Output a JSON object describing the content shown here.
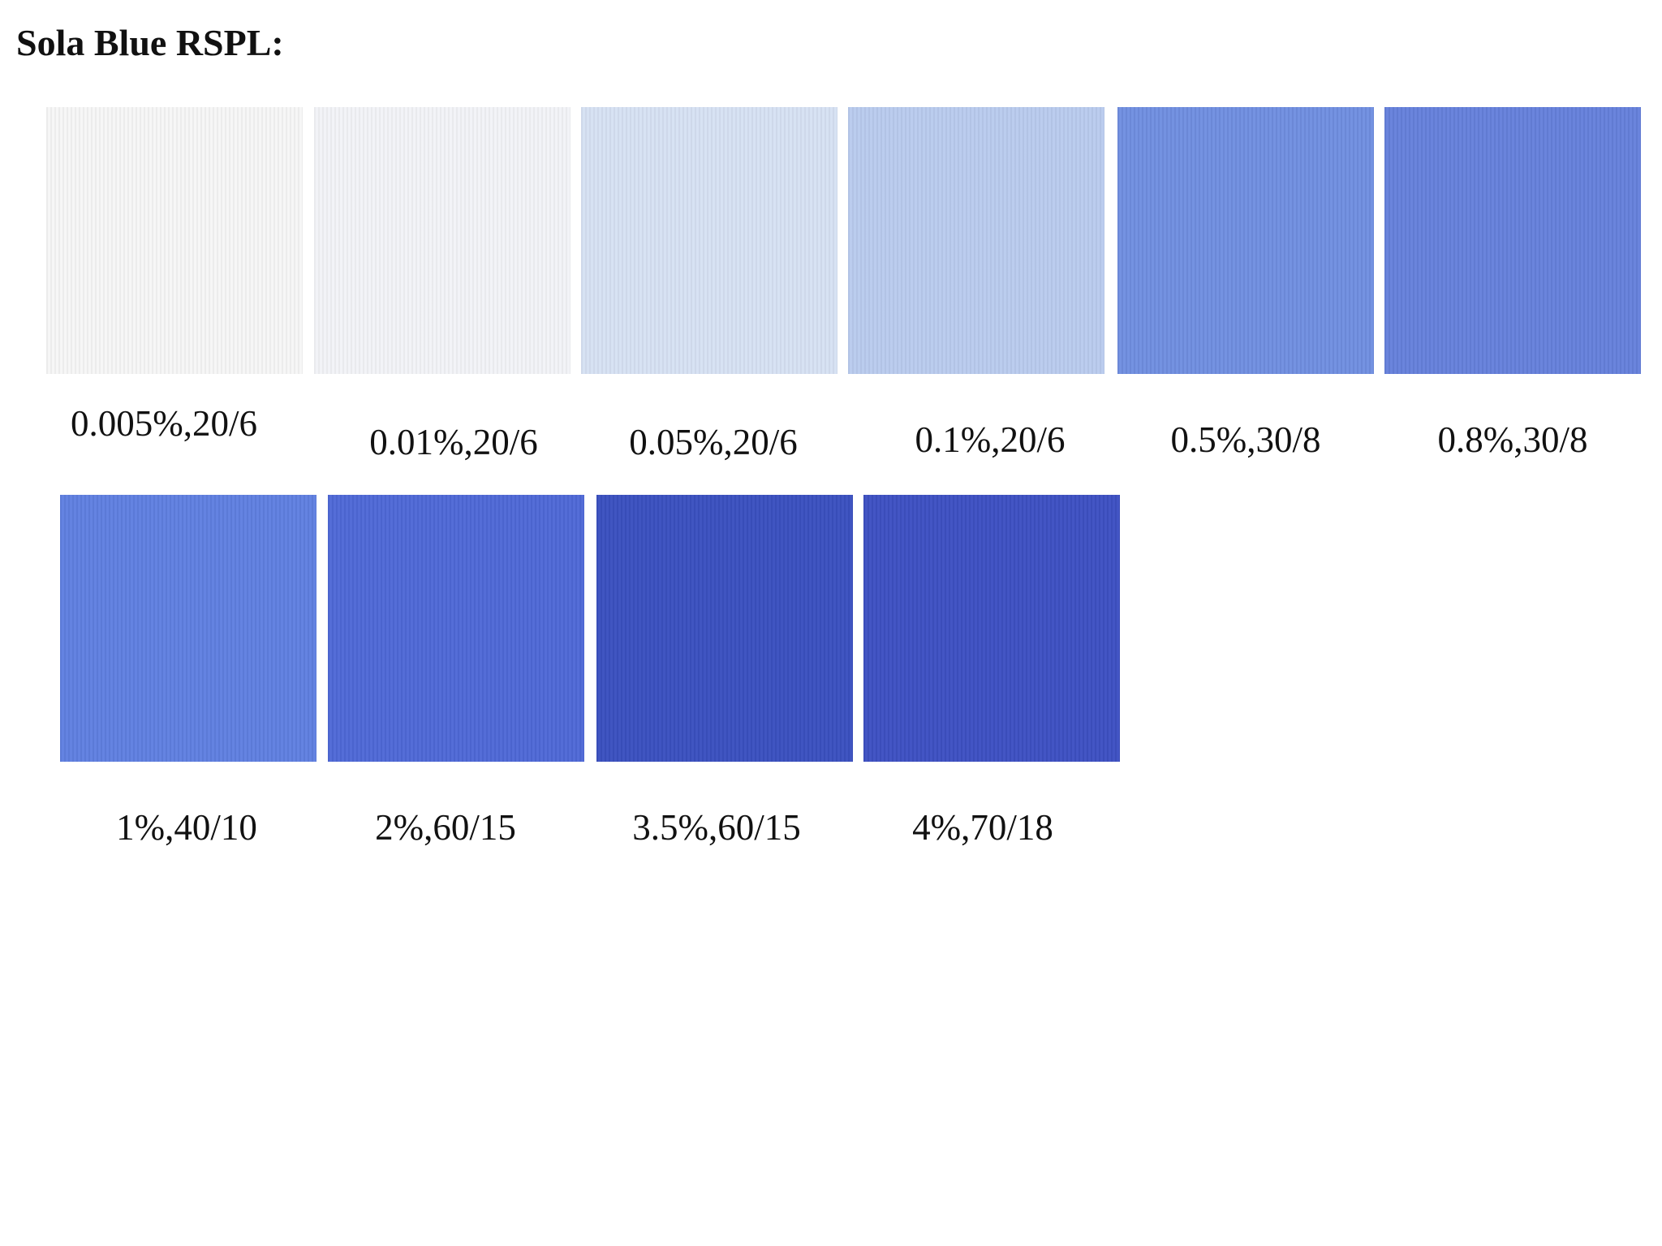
{
  "title": "Sola Blue RSPL:",
  "swatches": [
    {
      "label": "0.005%,20/6",
      "color": "#f6f6f6"
    },
    {
      "label": "0.01%,20/6",
      "color": "#f2f3f7"
    },
    {
      "label": "0.05%,20/6",
      "color": "#d6e1f3"
    },
    {
      "label": "0.1%,20/6",
      "color": "#b9cbee"
    },
    {
      "label": "0.5%,30/8",
      "color": "#6f8ee0"
    },
    {
      "label": "0.8%,30/8",
      "color": "#6580db"
    },
    {
      "label": "1%,40/10",
      "color": "#5f7fe0"
    },
    {
      "label": "2%,60/15",
      "color": "#4e68d6"
    },
    {
      "label": "3.5%,60/15",
      "color": "#3a50bf"
    },
    {
      "label": "4%,70/18",
      "color": "#3d50c2"
    }
  ]
}
